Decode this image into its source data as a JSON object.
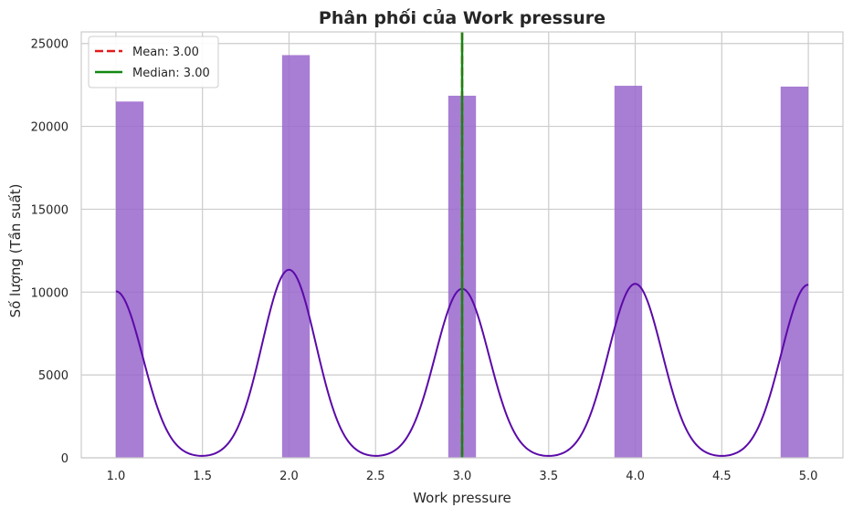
{
  "chart_data": {
    "type": "bar",
    "title": "Phân phối của Work pressure",
    "xlabel": "Work pressure",
    "ylabel": "Số lượng (Tần suất)",
    "xlim": [
      0.8,
      5.2
    ],
    "ylim": [
      0,
      25700
    ],
    "x_ticks": [
      1.0,
      1.5,
      2.0,
      2.5,
      3.0,
      3.5,
      4.0,
      4.5,
      5.0
    ],
    "x_tick_labels": [
      "1.0",
      "1.5",
      "2.0",
      "2.5",
      "3.0",
      "3.5",
      "4.0",
      "4.5",
      "5.0"
    ],
    "y_ticks": [
      0,
      5000,
      10000,
      15000,
      20000,
      25000
    ],
    "y_tick_labels": [
      "0",
      "5000",
      "10000",
      "15000",
      "20000",
      "25000"
    ],
    "grid": true,
    "bars": [
      {
        "x0": 1.0,
        "x1": 1.16,
        "value": 21500
      },
      {
        "x0": 1.96,
        "x1": 2.12,
        "value": 24300
      },
      {
        "x0": 2.92,
        "x1": 3.08,
        "value": 21850
      },
      {
        "x0": 3.88,
        "x1": 4.04,
        "value": 22450
      },
      {
        "x0": 4.84,
        "x1": 5.0,
        "value": 22400
      }
    ],
    "bar_color": "#9966cc",
    "kde": {
      "color": "#5b0aa8",
      "peaks": [
        {
          "x": 1.0,
          "height": 10050
        },
        {
          "x": 2.0,
          "height": 11350
        },
        {
          "x": 3.0,
          "height": 10200
        },
        {
          "x": 4.0,
          "height": 10500
        },
        {
          "x": 5.0,
          "height": 10450
        }
      ],
      "bandwidth": 0.155
    },
    "lines": [
      {
        "name": "Mean: 3.00",
        "x": 3.0,
        "style": "dashed",
        "color": "#e31a1c"
      },
      {
        "name": "Median: 3.00",
        "x": 3.0,
        "style": "solid",
        "color": "#118811"
      }
    ],
    "legend_position": "top-left"
  }
}
